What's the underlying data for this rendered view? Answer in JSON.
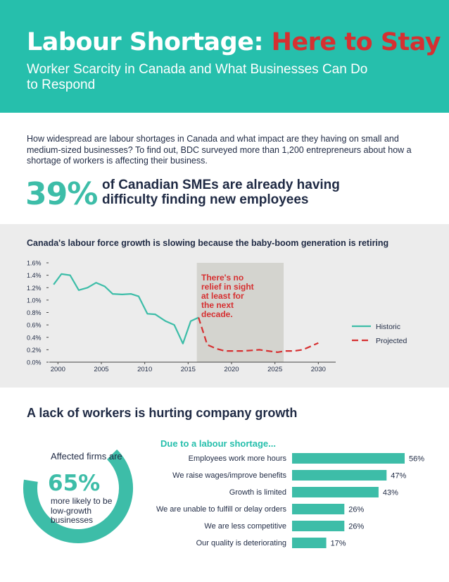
{
  "header": {
    "title_main": "Labour Shortage: ",
    "title_accent": "Here to Stay",
    "subtitle": "Worker Scarcity in Canada and What Businesses Can Do to Respond"
  },
  "intro": {
    "text": "How widespread are labour shortages in Canada and what impact are they having on small and medium-sized businesses? To find out, BDC surveyed more than 1,200 entrepreneurs about how a shortage of workers is affecting their business."
  },
  "headline_stat": {
    "value": "39%",
    "text": "of Canadian SMEs are already having difficulty finding new employees"
  },
  "section2": {
    "title": "A lack of workers is hurting company growth"
  },
  "donut": {
    "affected_label": "Affected firms are",
    "value_label": "65%",
    "value": 65,
    "description": "more likely to be low-growth businesses"
  },
  "colors": {
    "teal": "#26bfac",
    "historic_line": "#3dbda8",
    "projected_line": "#d63031",
    "bar": "#3dbda8",
    "band": "#ececec",
    "highlight": "#d4d4cf"
  },
  "chart_data": [
    {
      "type": "line",
      "title": "Canada's labour force growth is slowing because the baby-boom generation is retiring",
      "xlabel": "",
      "ylabel": "",
      "xlim": [
        1999,
        2032
      ],
      "ylim": [
        0.0,
        1.6
      ],
      "x_ticks": [
        2000,
        2005,
        2010,
        2015,
        2020,
        2025,
        2030
      ],
      "x_tick_labels": [
        "2000",
        "2005",
        "2010",
        "2015",
        "2020",
        "2025",
        "2030"
      ],
      "y_ticks": [
        0.0,
        0.2,
        0.4,
        0.6,
        0.8,
        1.0,
        1.2,
        1.4,
        1.6
      ],
      "y_tick_labels": [
        "0.0%",
        "0.2%",
        "0.4%",
        "0.6%",
        "0.8%",
        "1.0%",
        "1.2%",
        "1.4%",
        "1.6%"
      ],
      "highlight_range": [
        2016,
        2026
      ],
      "annotation": "There's no relief in sight at least for the next decade.",
      "legend_position": "right",
      "series": [
        {
          "name": "Historic",
          "style": "solid",
          "x": [
            1999.5,
            2000.4,
            2001.4,
            2002.4,
            2003.4,
            2004.4,
            2005.4,
            2006.3,
            2007.4,
            2008.4,
            2009.3,
            2010.3,
            2011.2,
            2012.4,
            2013.4,
            2014.4,
            2015.3,
            2016.2
          ],
          "values": [
            1.25,
            1.42,
            1.4,
            1.16,
            1.2,
            1.28,
            1.22,
            1.1,
            1.09,
            1.1,
            1.06,
            0.78,
            0.77,
            0.66,
            0.6,
            0.3,
            0.66,
            0.72
          ]
        },
        {
          "name": "Projected",
          "style": "dashed",
          "x": [
            2016.2,
            2017.2,
            2018.2,
            2019.2,
            2020.2,
            2021.3,
            2022.3,
            2023.2,
            2024.2,
            2025.3,
            2026.2,
            2027.2,
            2028.2,
            2029.2,
            2030.0
          ],
          "values": [
            0.72,
            0.28,
            0.22,
            0.18,
            0.18,
            0.18,
            0.19,
            0.2,
            0.18,
            0.16,
            0.18,
            0.18,
            0.2,
            0.26,
            0.31
          ]
        }
      ]
    },
    {
      "type": "bar",
      "orientation": "horizontal",
      "title": "Due to a labour shortage...",
      "categories": [
        "Employees work more hours",
        "We raise wages/improve benefits",
        "Growth is limited",
        "We are unable to fulfill or delay orders",
        "We are less competitive",
        "Our quality is deteriorating"
      ],
      "values": [
        56,
        47,
        43,
        26,
        26,
        17
      ],
      "value_labels": [
        "56%",
        "47%",
        "43%",
        "26%",
        "26%",
        "17%"
      ],
      "xlim": [
        0,
        60
      ]
    }
  ]
}
